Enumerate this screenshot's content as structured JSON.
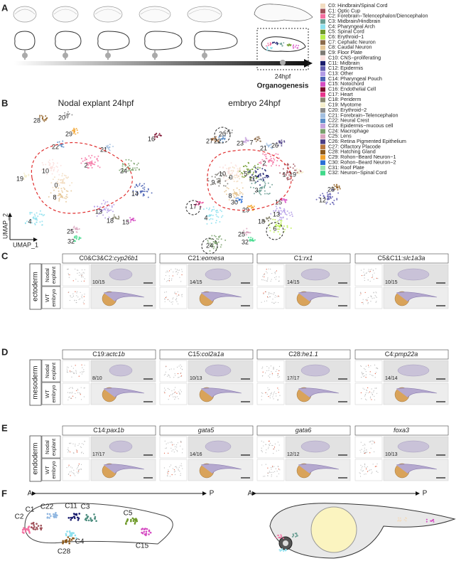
{
  "panel_a": {
    "label": "A",
    "stage": "24hpf",
    "title": "Organogenesis"
  },
  "legend": [
    {
      "label": "C0: Hindbrain/Spinal Cord",
      "color": "#f2dcc0"
    },
    {
      "label": "C1: Optic Cup",
      "color": "#a0525a"
    },
    {
      "label": "C2: Forebrain−Telencephalon/Diencephalon",
      "color": "#f46ea0"
    },
    {
      "label": "C3: Midbrain/Hindbrain",
      "color": "#6a9e93"
    },
    {
      "label": "C4: Pharyngeal Arch",
      "color": "#8de0ee"
    },
    {
      "label": "C5: Spinal Cord",
      "color": "#6f9a2a"
    },
    {
      "label": "C6: Erythroid−1",
      "color": "#b8ee4a"
    },
    {
      "label": "C7: Cephalic Neuron",
      "color": "#8c6b4a"
    },
    {
      "label": "C8: Caudal Neuron",
      "color": "#e6c796"
    },
    {
      "label": "C9: Floor Plate",
      "color": "#7d7a73"
    },
    {
      "label": "C10: CNS−proliferating",
      "color": "#fbe0de"
    },
    {
      "label": "C11: Midbrain",
      "color": "#1a1d6e"
    },
    {
      "label": "C12: Epidermis",
      "color": "#5e5bb0"
    },
    {
      "label": "C13: Other",
      "color": "#b29ae6"
    },
    {
      "label": "C14: Pharyngeal Pouch",
      "color": "#4b63b4"
    },
    {
      "label": "C15: Notochord",
      "color": "#d54bc2"
    },
    {
      "label": "C16: Endothelial Cell",
      "color": "#7d0e2e"
    },
    {
      "label": "C17: Heart",
      "color": "#e8358c"
    },
    {
      "label": "C18: Periderm",
      "color": "#8a8770"
    },
    {
      "label": "C19: Myotome",
      "color": "#f5efcc"
    },
    {
      "label": "C20: Erythroid−2",
      "color": "#8b8b8b"
    },
    {
      "label": "C21: Forebrain−Telencephalon",
      "color": "#a2bfe0"
    },
    {
      "label": "C22: Neural Crest",
      "color": "#5a8ec8"
    },
    {
      "label": "C23: Epidermis−mucous cell",
      "color": "#c7a2dd"
    },
    {
      "label": "C24: Macrophage",
      "color": "#7ba26d"
    },
    {
      "label": "C25: Lens",
      "color": "#d9a3bd"
    },
    {
      "label": "C26: Retina Pigmented Epithelium",
      "color": "#4c3e86"
    },
    {
      "label": "C27: Olfactory Placode",
      "color": "#b9773f"
    },
    {
      "label": "C28: Hatching Gland",
      "color": "#8d5a1c"
    },
    {
      "label": "C29: Rohon−Beard Neuron−1",
      "color": "#f2a22b"
    },
    {
      "label": "C30: Rohon−Beard Neuron−2",
      "color": "#2a6fd6"
    },
    {
      "label": "C31: Roof Plate",
      "color": "#9ee3b0"
    },
    {
      "label": "C32: Neuron−Spinal Cord",
      "color": "#40d98a"
    }
  ],
  "panel_b": {
    "label": "B",
    "x_axis": "UMAP_1",
    "y_axis": "UMAP_2",
    "umaps": [
      {
        "title": "Nodal explant 24hpf",
        "clusters": [
          "28",
          "20",
          "29",
          "22",
          "21",
          "16",
          "19",
          "10",
          "0",
          "2",
          "24",
          "8",
          "13",
          "14",
          "18",
          "15",
          "4",
          "25",
          "32"
        ]
      },
      {
        "title": "embryo 24hpf",
        "clusters": [
          "20",
          "23",
          "27",
          "22",
          "7",
          "21",
          "26",
          "19",
          "28",
          "10",
          "9",
          "0",
          "5",
          "11",
          "2",
          "1",
          "3",
          "8",
          "29",
          "30",
          "12",
          "15",
          "13",
          "17",
          "4",
          "18",
          "6",
          "25",
          "32",
          "24"
        ]
      }
    ]
  },
  "row_labels": [
    [
      "Nodal",
      "explant"
    ],
    [
      "WT",
      "embryo"
    ]
  ],
  "panels": [
    {
      "label": "C",
      "layer": "ectoderm",
      "genes": [
        {
          "prefix": "C0&C3&C2:",
          "name": "cyp26b1",
          "ratio": "10/15"
        },
        {
          "prefix": "C21:",
          "name": "eomesa",
          "ratio": "14/15"
        },
        {
          "prefix": "C1:",
          "name": "rx1",
          "ratio": "14/15"
        },
        {
          "prefix": "C5&C11:",
          "name": "slc1a3a",
          "ratio": "10/15"
        }
      ]
    },
    {
      "label": "D",
      "layer": "mesoderm",
      "genes": [
        {
          "prefix": "C19:",
          "name": "actc1b",
          "ratio": "8/10"
        },
        {
          "prefix": "C15:",
          "name": "col2a1a",
          "ratio": "10/13"
        },
        {
          "prefix": "C28:",
          "name": "he1.1",
          "ratio": "17/17"
        },
        {
          "prefix": "C4:",
          "name": "pmp22a",
          "ratio": "14/14"
        }
      ]
    },
    {
      "label": "E",
      "layer": "endoderm",
      "genes": [
        {
          "prefix": "C14:",
          "name": "pax1b",
          "ratio": "17/17"
        },
        {
          "name": "gata5",
          "ratio": "14/16"
        },
        {
          "name": "gata6",
          "ratio": "12/12"
        },
        {
          "name": "foxa3",
          "ratio": "10/13"
        }
      ]
    }
  ],
  "panel_f": {
    "label": "F",
    "anterior": "A",
    "posterior": "P",
    "clusters": [
      {
        "label": "C2",
        "color": "#f46ea0"
      },
      {
        "label": "C1",
        "color": "#a0525a"
      },
      {
        "label": "C22",
        "color": "#8fb6e0"
      },
      {
        "label": "C11",
        "color": "#1a1d6e"
      },
      {
        "label": "C3",
        "color": "#4f8f80"
      },
      {
        "label": "C5",
        "color": "#6f9a2a"
      },
      {
        "label": "C4",
        "color": "#8de0ee"
      },
      {
        "label": "C28",
        "color": "#8d5a1c"
      },
      {
        "label": "C15",
        "color": "#d54bc2"
      }
    ]
  }
}
